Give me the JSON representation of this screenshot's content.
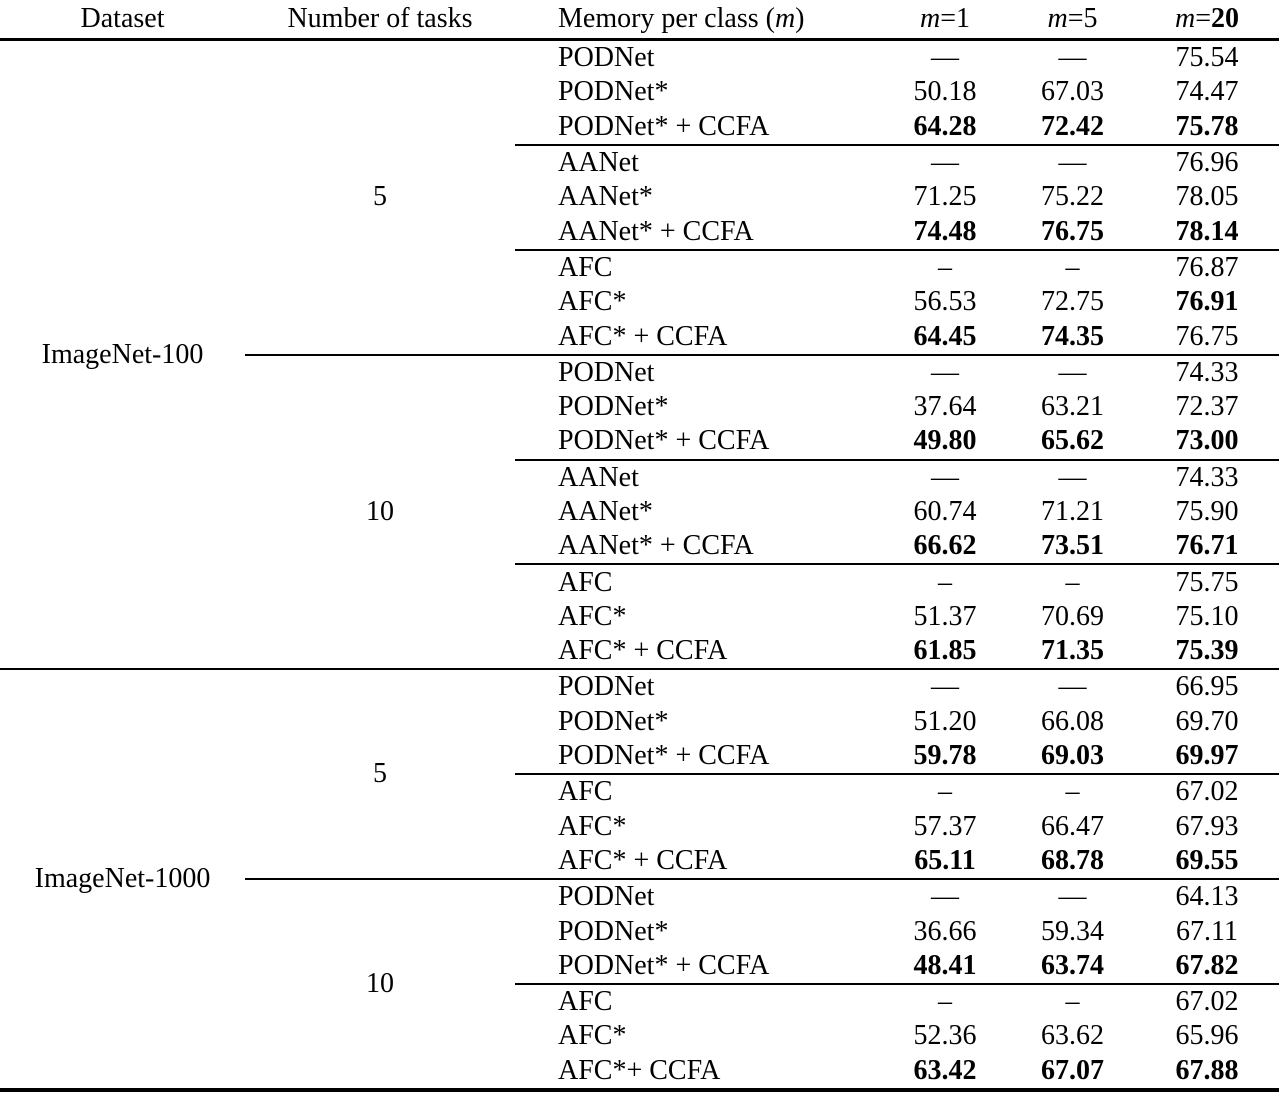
{
  "table": {
    "header": {
      "dataset": "Dataset",
      "tasks": "Number of tasks",
      "memory_prefix": "Memory per class ",
      "memory_open": "(",
      "memory_var": "m",
      "memory_close": ")",
      "m1": {
        "var": "m",
        "eq": "=",
        "num": "1"
      },
      "m5": {
        "var": "m",
        "eq": "=",
        "num": "5"
      },
      "m20": {
        "var": "m",
        "eq": "=",
        "num": "20"
      }
    },
    "groups": [
      {
        "dataset": "ImageNet-100",
        "task_blocks": [
          {
            "tasks": "5",
            "method_groups": [
              {
                "rows": [
                  {
                    "method": "PODNet",
                    "m1": "—",
                    "m5": "—",
                    "m20": "75.54",
                    "bold": []
                  },
                  {
                    "method": "PODNet*",
                    "m1": "50.18",
                    "m5": "67.03",
                    "m20": "74.47",
                    "bold": []
                  },
                  {
                    "method": "PODNet* + CCFA",
                    "m1": "64.28",
                    "m5": "72.42",
                    "m20": "75.78",
                    "bold": [
                      "m1",
                      "m5",
                      "m20"
                    ]
                  }
                ]
              },
              {
                "rows": [
                  {
                    "method": "AANet",
                    "m1": "—",
                    "m5": "—",
                    "m20": "76.96",
                    "bold": []
                  },
                  {
                    "method": "AANet*",
                    "m1": "71.25",
                    "m5": "75.22",
                    "m20": "78.05",
                    "bold": []
                  },
                  {
                    "method": "AANet* + CCFA",
                    "m1": "74.48",
                    "m5": "76.75",
                    "m20": "78.14",
                    "bold": [
                      "m1",
                      "m5",
                      "m20"
                    ]
                  }
                ]
              },
              {
                "rows": [
                  {
                    "method": "AFC",
                    "m1": "–",
                    "m5": "–",
                    "m20": "76.87",
                    "bold": []
                  },
                  {
                    "method": "AFC*",
                    "m1": "56.53",
                    "m5": "72.75",
                    "m20": "76.91",
                    "bold": [
                      "m20"
                    ]
                  },
                  {
                    "method": "AFC* + CCFA",
                    "m1": "64.45",
                    "m5": "74.35",
                    "m20": "76.75",
                    "bold": [
                      "m1",
                      "m5"
                    ]
                  }
                ]
              }
            ]
          },
          {
            "tasks": "10",
            "method_groups": [
              {
                "rows": [
                  {
                    "method": "PODNet",
                    "m1": "—",
                    "m5": "—",
                    "m20": "74.33",
                    "bold": []
                  },
                  {
                    "method": "PODNet*",
                    "m1": "37.64",
                    "m5": "63.21",
                    "m20": "72.37",
                    "bold": []
                  },
                  {
                    "method": "PODNet* + CCFA",
                    "m1": "49.80",
                    "m5": "65.62",
                    "m20": "73.00",
                    "bold": [
                      "m1",
                      "m5",
                      "m20"
                    ]
                  }
                ]
              },
              {
                "rows": [
                  {
                    "method": "AANet",
                    "m1": "—",
                    "m5": "—",
                    "m20": "74.33",
                    "bold": []
                  },
                  {
                    "method": "AANet*",
                    "m1": "60.74",
                    "m5": "71.21",
                    "m20": "75.90",
                    "bold": []
                  },
                  {
                    "method": "AANet* + CCFA",
                    "m1": "66.62",
                    "m5": "73.51",
                    "m20": "76.71",
                    "bold": [
                      "m1",
                      "m5",
                      "m20"
                    ]
                  }
                ]
              },
              {
                "rows": [
                  {
                    "method": "AFC",
                    "m1": "–",
                    "m5": "–",
                    "m20": "75.75",
                    "bold": []
                  },
                  {
                    "method": "AFC*",
                    "m1": "51.37",
                    "m5": "70.69",
                    "m20": "75.10",
                    "bold": []
                  },
                  {
                    "method": "AFC* + CCFA",
                    "m1": "61.85",
                    "m5": "71.35",
                    "m20": "75.39",
                    "bold": [
                      "m1",
                      "m5",
                      "m20"
                    ]
                  }
                ]
              }
            ]
          }
        ]
      },
      {
        "dataset": "ImageNet-1000",
        "task_blocks": [
          {
            "tasks": "5",
            "method_groups": [
              {
                "rows": [
                  {
                    "method": "PODNet",
                    "m1": "—",
                    "m5": "—",
                    "m20": "66.95",
                    "bold": []
                  },
                  {
                    "method": "PODNet*",
                    "m1": "51.20",
                    "m5": "66.08",
                    "m20": "69.70",
                    "bold": []
                  },
                  {
                    "method": "PODNet* + CCFA",
                    "m1": "59.78",
                    "m5": "69.03",
                    "m20": "69.97",
                    "bold": [
                      "m1",
                      "m5",
                      "m20"
                    ]
                  }
                ]
              },
              {
                "rows": [
                  {
                    "method": "AFC",
                    "m1": "–",
                    "m5": "–",
                    "m20": "67.02",
                    "bold": []
                  },
                  {
                    "method": "AFC*",
                    "m1": "57.37",
                    "m5": "66.47",
                    "m20": "67.93",
                    "bold": []
                  },
                  {
                    "method": "AFC* + CCFA",
                    "m1": "65.11",
                    "m5": "68.78",
                    "m20": "69.55",
                    "bold": [
                      "m1",
                      "m5",
                      "m20"
                    ]
                  }
                ]
              }
            ]
          },
          {
            "tasks": "10",
            "method_groups": [
              {
                "rows": [
                  {
                    "method": "PODNet",
                    "m1": "—",
                    "m5": "—",
                    "m20": "64.13",
                    "bold": []
                  },
                  {
                    "method": "PODNet*",
                    "m1": "36.66",
                    "m5": "59.34",
                    "m20": "67.11",
                    "bold": []
                  },
                  {
                    "method": "PODNet* + CCFA",
                    "m1": "48.41",
                    "m5": "63.74",
                    "m20": "67.82",
                    "bold": [
                      "m1",
                      "m5",
                      "m20"
                    ]
                  }
                ]
              },
              {
                "rows": [
                  {
                    "method": "AFC",
                    "m1": "–",
                    "m5": "–",
                    "m20": "67.02",
                    "bold": []
                  },
                  {
                    "method": "AFC*",
                    "m1": "52.36",
                    "m5": "63.62",
                    "m20": "65.96",
                    "bold": []
                  },
                  {
                    "method": "AFC*+ CCFA",
                    "m1": "63.42",
                    "m5": "67.07",
                    "m20": "67.88",
                    "bold": [
                      "m1",
                      "m5",
                      "m20"
                    ]
                  }
                ]
              }
            ]
          }
        ]
      }
    ]
  }
}
